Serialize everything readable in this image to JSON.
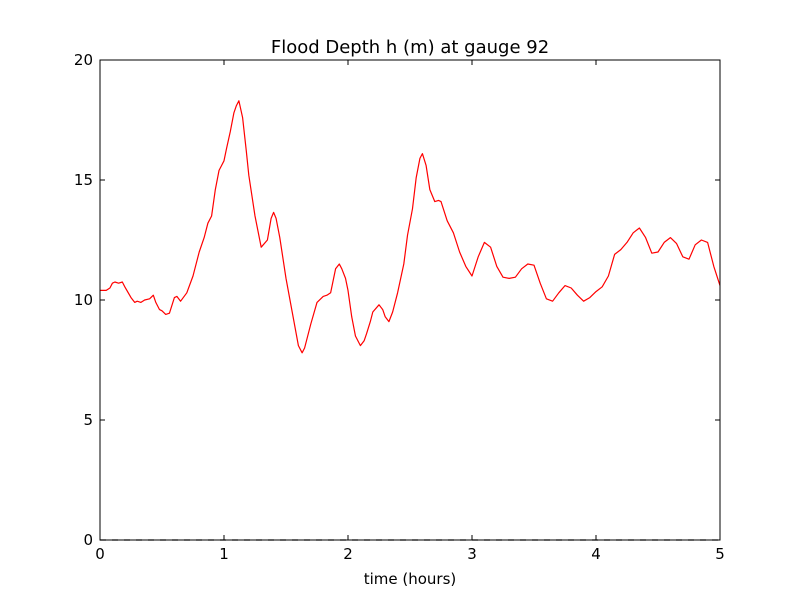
{
  "chart_data": {
    "type": "line",
    "title": "Flood Depth h (m) at gauge 92",
    "xlabel": "time (hours)",
    "ylabel": "",
    "xlim": [
      0,
      5
    ],
    "ylim": [
      0,
      20
    ],
    "xticks": [
      0,
      1,
      2,
      3,
      4,
      5
    ],
    "yticks": [
      0,
      5,
      10,
      15,
      20
    ],
    "grid": false,
    "series": [
      {
        "color": "#ff0000",
        "style": "solid",
        "x": [
          0.0,
          0.05,
          0.08,
          0.1,
          0.12,
          0.15,
          0.18,
          0.2,
          0.25,
          0.28,
          0.3,
          0.33,
          0.36,
          0.4,
          0.43,
          0.45,
          0.48,
          0.5,
          0.53,
          0.56,
          0.6,
          0.62,
          0.65,
          0.7,
          0.75,
          0.8,
          0.84,
          0.87,
          0.9,
          0.93,
          0.96,
          0.98,
          1.0,
          1.02,
          1.05,
          1.08,
          1.1,
          1.12,
          1.15,
          1.18,
          1.2,
          1.25,
          1.3,
          1.35,
          1.38,
          1.4,
          1.42,
          1.45,
          1.5,
          1.55,
          1.6,
          1.63,
          1.65,
          1.7,
          1.75,
          1.8,
          1.83,
          1.86,
          1.88,
          1.9,
          1.93,
          1.95,
          1.98,
          2.0,
          2.03,
          2.06,
          2.1,
          2.13,
          2.15,
          2.18,
          2.2,
          2.25,
          2.28,
          2.3,
          2.33,
          2.36,
          2.4,
          2.45,
          2.48,
          2.52,
          2.55,
          2.58,
          2.6,
          2.63,
          2.66,
          2.7,
          2.73,
          2.75,
          2.8,
          2.85,
          2.9,
          2.95,
          3.0,
          3.05,
          3.1,
          3.15,
          3.2,
          3.25,
          3.3,
          3.35,
          3.4,
          3.45,
          3.5,
          3.55,
          3.6,
          3.65,
          3.7,
          3.75,
          3.8,
          3.85,
          3.9,
          3.95,
          4.0,
          4.05,
          4.1,
          4.15,
          4.2,
          4.25,
          4.3,
          4.35,
          4.4,
          4.45,
          4.5,
          4.55,
          4.6,
          4.65,
          4.7,
          4.75,
          4.8,
          4.85,
          4.9,
          4.95,
          5.0
        ],
        "y": [
          10.4,
          10.4,
          10.5,
          10.7,
          10.75,
          10.7,
          10.75,
          10.55,
          10.1,
          9.9,
          9.95,
          9.9,
          10.0,
          10.05,
          10.2,
          9.9,
          9.6,
          9.55,
          9.4,
          9.45,
          10.1,
          10.15,
          9.95,
          10.3,
          11.0,
          12.0,
          12.6,
          13.2,
          13.5,
          14.6,
          15.4,
          15.6,
          15.8,
          16.3,
          17.0,
          17.8,
          18.1,
          18.3,
          17.6,
          16.2,
          15.2,
          13.5,
          12.2,
          12.5,
          13.4,
          13.65,
          13.4,
          12.6,
          10.9,
          9.5,
          8.1,
          7.8,
          8.0,
          9.0,
          9.9,
          10.15,
          10.2,
          10.3,
          10.8,
          11.3,
          11.5,
          11.3,
          10.9,
          10.4,
          9.3,
          8.5,
          8.1,
          8.3,
          8.6,
          9.1,
          9.5,
          9.8,
          9.6,
          9.3,
          9.1,
          9.5,
          10.3,
          11.5,
          12.7,
          13.8,
          15.1,
          15.9,
          16.1,
          15.6,
          14.6,
          14.1,
          14.15,
          14.1,
          13.3,
          12.8,
          12.0,
          11.4,
          11.0,
          11.8,
          12.4,
          12.2,
          11.4,
          10.95,
          10.9,
          10.95,
          11.3,
          11.5,
          11.45,
          10.7,
          10.05,
          9.95,
          10.3,
          10.6,
          10.5,
          10.2,
          9.95,
          10.1,
          10.35,
          10.55,
          11.0,
          11.9,
          12.1,
          12.4,
          12.8,
          13.0,
          12.6,
          11.95,
          12.0,
          12.4,
          12.6,
          12.35,
          11.8,
          11.7,
          12.3,
          12.5,
          12.4,
          11.4,
          10.6
        ]
      },
      {
        "color": "#000000",
        "style": "dashed",
        "x": [
          0,
          5
        ],
        "y": [
          0,
          0
        ]
      }
    ]
  }
}
